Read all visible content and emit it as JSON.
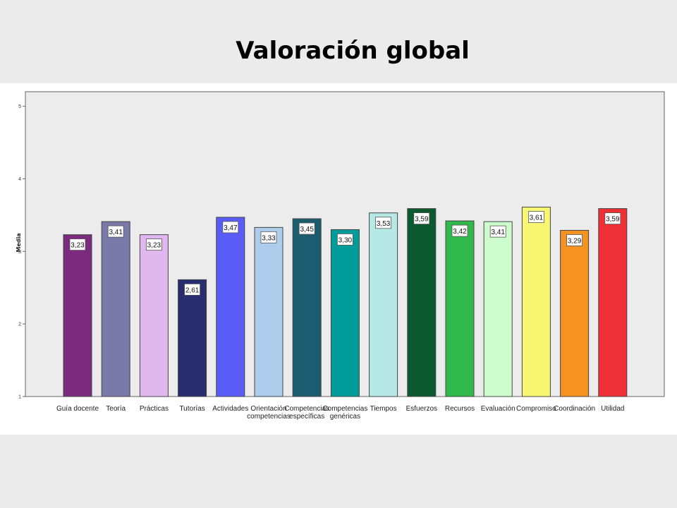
{
  "slide": {
    "title": "Valoración global"
  },
  "chart_data": {
    "type": "bar",
    "ylabel": "Media",
    "xlabel": "",
    "ylim": [
      1,
      5.2
    ],
    "yticks": [
      1,
      2,
      3,
      4,
      5
    ],
    "grid": false,
    "plot_background": "#ececec",
    "categories": [
      "Guía docente",
      "Teoría",
      "Prácticas",
      "Tutorías",
      "Actividades",
      "Orientación competencias",
      "Competencias específicas",
      "Competencias genéricas",
      "Tiempos",
      "Esfuerzos",
      "Recursos",
      "Evaluación",
      "Compromiso",
      "Coordinación",
      "Utilidad"
    ],
    "category_lines": [
      [
        "Guía docente"
      ],
      [
        "Teoría"
      ],
      [
        "Prácticas"
      ],
      [
        "Tutorías"
      ],
      [
        "Actividades"
      ],
      [
        "Orientación",
        "competencias"
      ],
      [
        "Competencias",
        "específicas"
      ],
      [
        "Competencias",
        "genéricas"
      ],
      [
        "Tiempos"
      ],
      [
        "Esfuerzos"
      ],
      [
        "Recursos"
      ],
      [
        "Evaluación"
      ],
      [
        "Compromiso"
      ],
      [
        "Coordinación"
      ],
      [
        "Utilidad"
      ]
    ],
    "values": [
      3.23,
      3.41,
      3.23,
      2.61,
      3.47,
      3.33,
      3.45,
      3.3,
      3.53,
      3.59,
      3.42,
      3.41,
      3.61,
      3.29,
      3.59
    ],
    "value_labels": [
      "3,23",
      "3,41",
      "3,23",
      "2,61",
      "3,47",
      "3,33",
      "3,45",
      "3,30",
      "3,53",
      "3,59",
      "3,42",
      "3,41",
      "3,61",
      "3,29",
      "3,59"
    ],
    "colors": [
      "#7b2a7e",
      "#7b79a9",
      "#e1b7f0",
      "#282d70",
      "#5a5cf7",
      "#aecdec",
      "#1c5c70",
      "#009c9a",
      "#b6e9e6",
      "#0b5a2f",
      "#31b84a",
      "#cdfccd",
      "#f7f772",
      "#f69220",
      "#ee2f36"
    ]
  }
}
